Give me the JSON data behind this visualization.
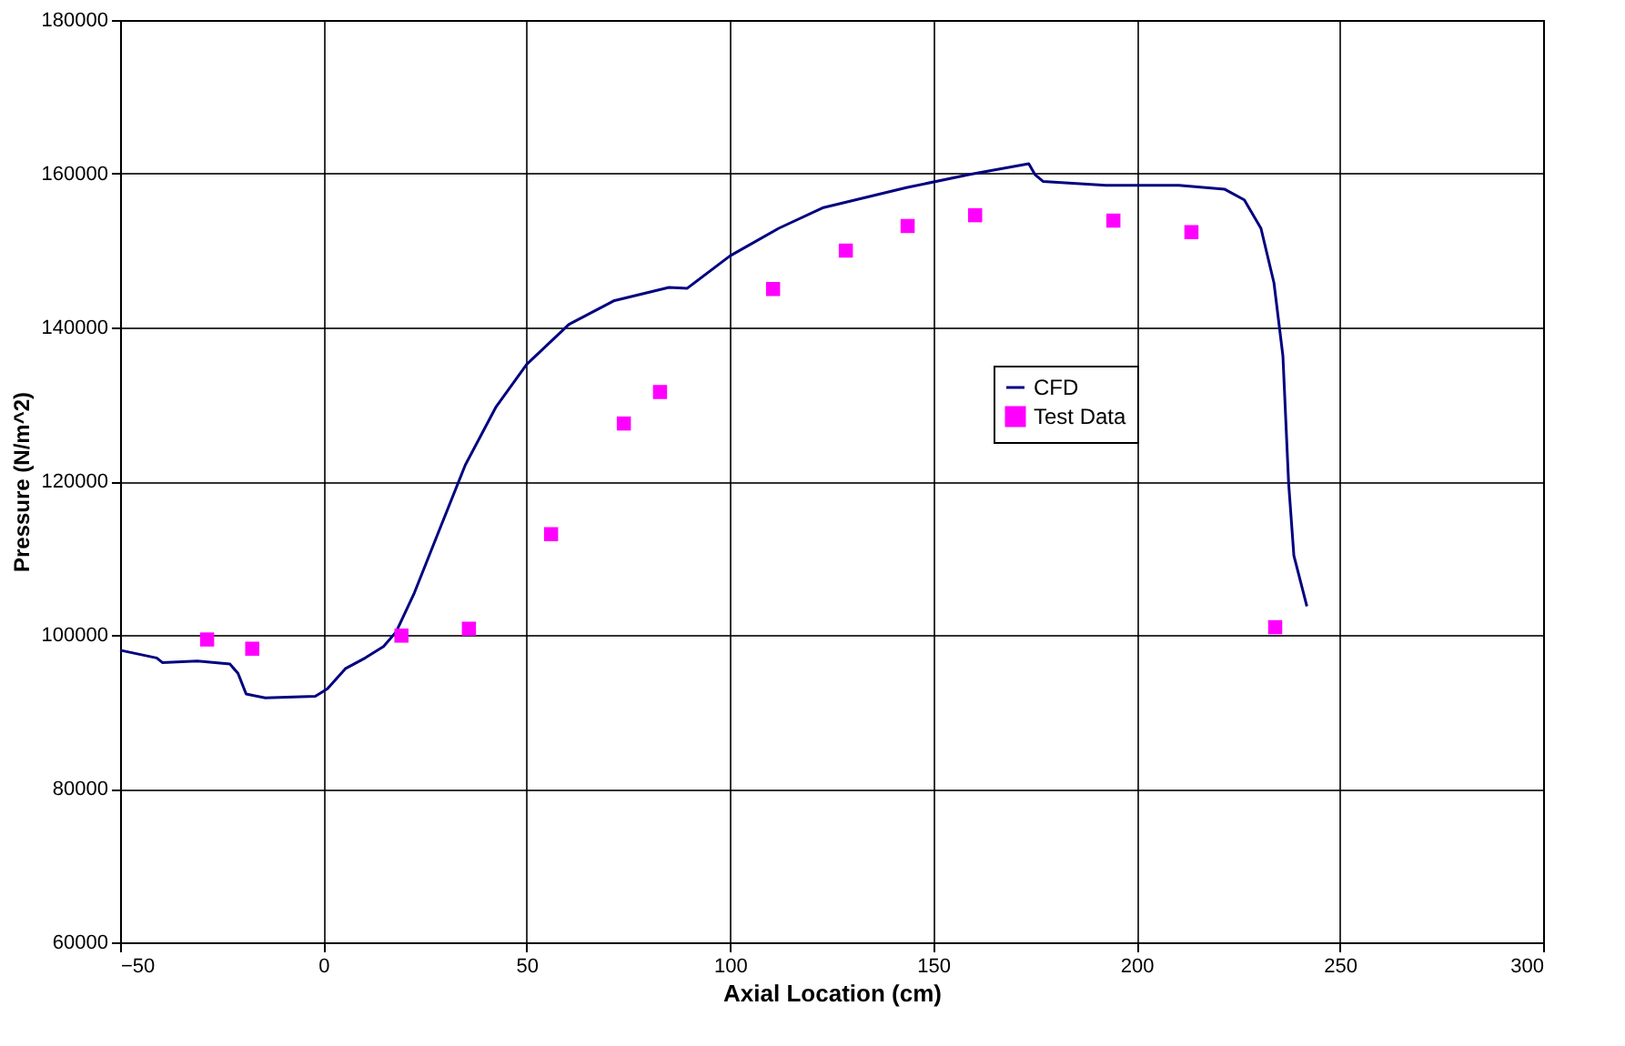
{
  "chart_data": {
    "type": "line",
    "xlabel": "Axial Location (cm)",
    "ylabel": "Pressure (N/m^2)",
    "xlim": [
      -50,
      300
    ],
    "ylim": [
      60000,
      180000
    ],
    "xticks": [
      -50,
      0,
      50,
      100,
      150,
      200,
      250,
      300
    ],
    "yticks": [
      60000,
      80000,
      100000,
      120000,
      140000,
      160000,
      180000
    ],
    "grid": true,
    "legend": "right",
    "series": [
      {
        "name": "CFD",
        "color": "#000080",
        "marker": "none",
        "line_style": "solid",
        "x": [
          -50,
          -41,
          -39.6,
          -31,
          -23,
          -21,
          -19,
          -14.3,
          -2,
          1,
          5.4,
          10.3,
          14.8,
          17.9,
          22.4,
          27.8,
          34.9,
          42.5,
          50,
          60.4,
          71.6,
          85,
          89.5,
          100,
          112,
          123,
          143.4,
          159,
          173.5,
          175,
          177,
          192.5,
          210.4,
          221.6,
          226.5,
          230.6,
          233.8,
          236,
          237.4,
          238.7,
          241.9
        ],
        "values": [
          98000,
          97000,
          96400,
          96600,
          96200,
          95000,
          92300,
          91800,
          92000,
          93000,
          95600,
          97000,
          98500,
          100400,
          105500,
          112700,
          122100,
          129700,
          135200,
          140400,
          143500,
          145200,
          145100,
          149300,
          152900,
          155600,
          158200,
          159900,
          161300,
          159900,
          159000,
          158500,
          158500,
          158000,
          156600,
          152900,
          145800,
          136300,
          119800,
          110300,
          103700
        ]
      },
      {
        "name": "Test Data",
        "type": "scatter",
        "color": "#ff00ff",
        "marker": "square",
        "x": [
          -28.6,
          -17.5,
          19.2,
          35.8,
          56,
          73.9,
          82.8,
          110.6,
          128.5,
          143.7,
          160.3,
          194.3,
          213.5,
          234.1
        ],
        "values": [
          99400,
          98200,
          99900,
          100800,
          113100,
          127500,
          131600,
          145000,
          150000,
          153200,
          154600,
          153900,
          152400,
          101000
        ]
      }
    ]
  }
}
